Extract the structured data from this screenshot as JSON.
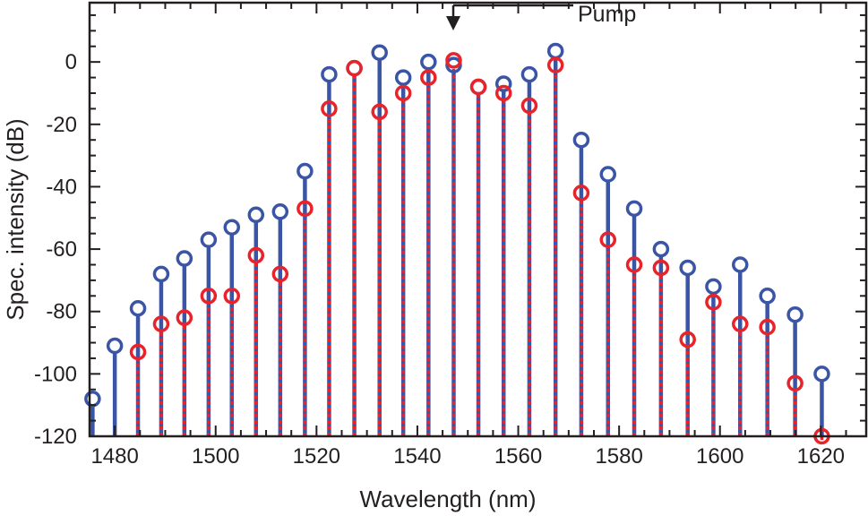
{
  "chart_data": {
    "type": "stem",
    "title": "",
    "xlabel": "Wavelength (nm)",
    "ylabel": "Spec. intensity (dB)",
    "xlim": [
      1475,
      1629
    ],
    "ylim": [
      -120,
      19
    ],
    "xticks": [
      1480,
      1500,
      1520,
      1540,
      1560,
      1580,
      1600,
      1620
    ],
    "yticks": [
      0,
      -20,
      -40,
      -60,
      -80,
      -100,
      -120
    ],
    "grid": false,
    "annotation": {
      "text": "Pump",
      "x": 1547.2
    },
    "x": [
      1475.6,
      1480.0,
      1484.6,
      1489.2,
      1493.8,
      1498.6,
      1503.2,
      1508.0,
      1512.8,
      1517.7,
      1522.5,
      1527.5,
      1532.5,
      1537.2,
      1542.2,
      1547.2,
      1552.1,
      1557.1,
      1562.2,
      1567.4,
      1572.5,
      1577.8,
      1583.0,
      1588.3,
      1593.6,
      1598.7,
      1604.0,
      1609.4,
      1614.9,
      1620.2
    ],
    "series": [
      {
        "name": "blue",
        "color": "#3b55a6",
        "style": "solid",
        "values": [
          -108,
          -91,
          -79,
          -68,
          -63,
          -57,
          -53,
          -49,
          -48,
          -35,
          -4,
          -2,
          3,
          -5,
          0,
          -1,
          -8,
          -7,
          -4,
          3.5,
          -25,
          -36,
          -47,
          -60,
          -66,
          -72,
          -65,
          -75,
          -81,
          -100
        ]
      },
      {
        "name": "red",
        "color": "#e8232a",
        "style": "dotted",
        "values": [
          null,
          null,
          -93,
          -84,
          -82,
          -75,
          -75,
          -62,
          -68,
          -47,
          -15,
          -2,
          -16,
          -10,
          -5,
          0.5,
          -8,
          -10,
          -14,
          -1,
          -42,
          -57,
          -65,
          -66,
          -89,
          -77,
          -84,
          -85,
          -103,
          -120
        ]
      }
    ]
  }
}
